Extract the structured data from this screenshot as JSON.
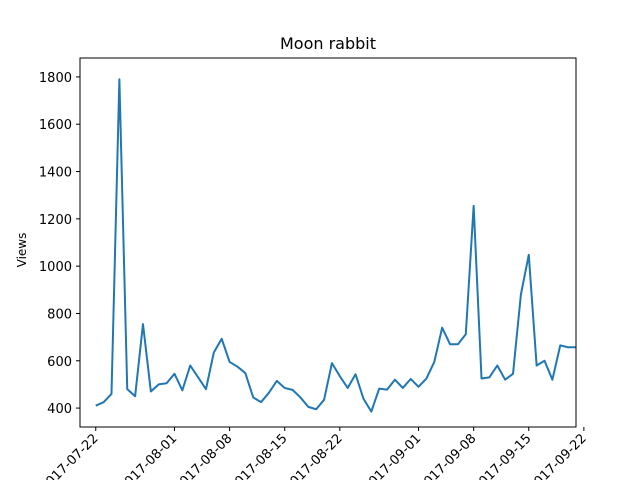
{
  "chart_data": {
    "type": "line",
    "title": "Moon rabbit",
    "xlabel": "",
    "ylabel": "Views",
    "grid": false,
    "legend": "none",
    "line_color": "#1f77b4",
    "xlim": [
      "2017-07-20",
      "2017-09-21"
    ],
    "ylim": [
      320,
      1880
    ],
    "yticks": [
      400,
      600,
      800,
      1000,
      1200,
      1400,
      1600,
      1800
    ],
    "xticks": [
      "2017-07-22",
      "2017-08-01",
      "2017-08-08",
      "2017-08-15",
      "2017-08-22",
      "2017-09-01",
      "2017-09-08",
      "2017-09-15",
      "2017-09-22"
    ],
    "xtick_labels": [
      "2017-07-22",
      "2017-08-01",
      "2017-08-08",
      "2017-08-15",
      "2017-08-22",
      "2017-09-01",
      "2017-09-08",
      "2017-09-15",
      "2017-09-22"
    ],
    "series": [
      {
        "x": [
          "2017-07-22",
          "2017-07-23",
          "2017-07-24",
          "2017-07-25",
          "2017-07-26",
          "2017-07-27",
          "2017-07-28",
          "2017-07-29",
          "2017-07-30",
          "2017-07-31",
          "2017-08-01",
          "2017-08-02",
          "2017-08-03",
          "2017-08-04",
          "2017-08-05",
          "2017-08-06",
          "2017-08-07",
          "2017-08-08",
          "2017-08-09",
          "2017-08-10",
          "2017-08-11",
          "2017-08-12",
          "2017-08-13",
          "2017-08-14",
          "2017-08-15",
          "2017-08-16",
          "2017-08-17",
          "2017-08-18",
          "2017-08-19",
          "2017-08-20",
          "2017-08-21",
          "2017-08-22",
          "2017-08-23",
          "2017-08-24",
          "2017-08-25",
          "2017-08-26",
          "2017-08-27",
          "2017-08-28",
          "2017-08-29",
          "2017-08-30",
          "2017-08-31",
          "2017-09-01",
          "2017-09-02",
          "2017-09-03",
          "2017-09-04",
          "2017-09-05",
          "2017-09-06",
          "2017-09-07",
          "2017-09-08",
          "2017-09-09",
          "2017-09-10",
          "2017-09-11",
          "2017-09-12",
          "2017-09-13",
          "2017-09-14",
          "2017-09-15",
          "2017-09-16",
          "2017-09-17",
          "2017-09-18",
          "2017-09-19",
          "2017-09-20",
          "2017-09-21"
        ],
        "values": [
          410,
          425,
          460,
          1790,
          480,
          450,
          755,
          470,
          500,
          505,
          545,
          475,
          580,
          530,
          480,
          635,
          693,
          595,
          575,
          548,
          445,
          425,
          465,
          515,
          485,
          477,
          445,
          405,
          395,
          435,
          590,
          535,
          485,
          543,
          440,
          385,
          482,
          478,
          520,
          485,
          523,
          490,
          525,
          595,
          740,
          670,
          670,
          712,
          1255,
          525,
          530,
          580,
          520,
          545,
          880,
          1048,
          580,
          600,
          520,
          665,
          657,
          657
        ]
      }
    ]
  }
}
